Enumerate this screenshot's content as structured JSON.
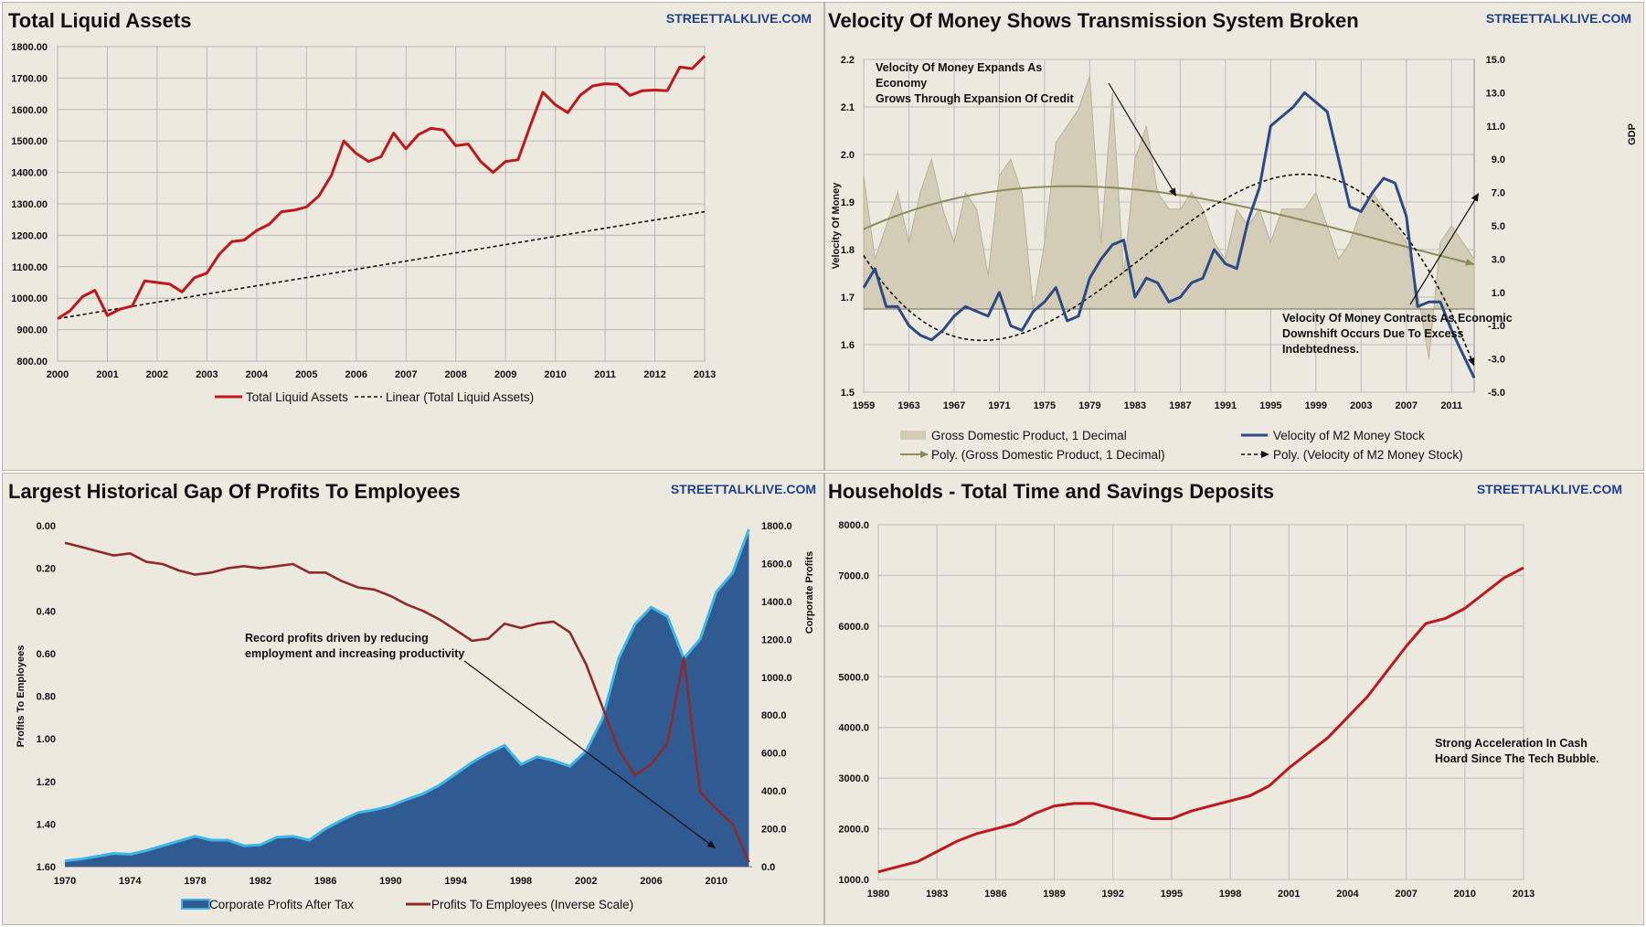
{
  "panels": {
    "p1": {
      "title": "Total Liquid Assets",
      "brand": "STREETTALKLIVE.COM"
    },
    "p2": {
      "title": "Velocity Of Money Shows Transmission System Broken",
      "brand": "STREETTALKLIVE.COM"
    },
    "p3": {
      "title": "Largest Historical Gap Of Profits To Employees",
      "brand": "STREETTALKLIVE.COM"
    },
    "p4": {
      "title": "Households - Total Time and Savings Deposits",
      "brand": "STREETTALKLIVE.COM"
    }
  },
  "chart_data": [
    {
      "id": "p1",
      "type": "line",
      "title": "Total Liquid Assets",
      "ylim": [
        800,
        1800
      ],
      "xlim": [
        2000,
        2013
      ],
      "x_ticks": [
        "2000",
        "2001",
        "2002",
        "2003",
        "2004",
        "2005",
        "2006",
        "2007",
        "2008",
        "2009",
        "2010",
        "2011",
        "2012",
        "2013"
      ],
      "y_ticks": [
        "800.00",
        "900.00",
        "1000.00",
        "1100.00",
        "1200.00",
        "1300.00",
        "1400.00",
        "1500.00",
        "1600.00",
        "1700.00",
        "1800.00"
      ],
      "grid": true,
      "legend_position": "bottom",
      "colors": {
        "series": "#c0171e",
        "trend": "#111111"
      },
      "series": [
        {
          "name": "Total Liquid Assets",
          "x": [
            2000,
            2000.25,
            2000.5,
            2000.75,
            2001,
            2001.25,
            2001.5,
            2001.75,
            2002,
            2002.25,
            2002.5,
            2002.75,
            2003,
            2003.25,
            2003.5,
            2003.75,
            2004,
            2004.25,
            2004.5,
            2004.75,
            2005,
            2005.25,
            2005.5,
            2005.75,
            2006,
            2006.25,
            2006.5,
            2006.75,
            2007,
            2007.25,
            2007.5,
            2007.75,
            2008,
            2008.25,
            2008.5,
            2008.75,
            2009,
            2009.25,
            2009.5,
            2009.75,
            2010,
            2010.25,
            2010.5,
            2010.75,
            2011,
            2011.25,
            2011.5,
            2011.75,
            2012,
            2012.25,
            2012.5,
            2012.75,
            2013
          ],
          "values": [
            935,
            960,
            1005,
            1025,
            945,
            965,
            975,
            1055,
            1050,
            1045,
            1020,
            1065,
            1080,
            1140,
            1180,
            1185,
            1215,
            1235,
            1275,
            1280,
            1290,
            1325,
            1390,
            1500,
            1460,
            1435,
            1450,
            1525,
            1475,
            1520,
            1540,
            1535,
            1485,
            1490,
            1435,
            1400,
            1435,
            1440,
            1550,
            1655,
            1615,
            1590,
            1645,
            1675,
            1682,
            1680,
            1645,
            1660,
            1662,
            1660,
            1735,
            1730,
            1770
          ]
        },
        {
          "name": "Linear (Total Liquid Assets)",
          "x": [
            2000,
            2013
          ],
          "values": [
            935,
            1275
          ]
        }
      ]
    },
    {
      "id": "p2",
      "type": "line",
      "title": "Velocity Of Money Shows Transmission System Broken",
      "ylabel": "Velocity Of Money",
      "y2label": "GDP",
      "ylim": [
        1.5,
        2.2
      ],
      "y2lim": [
        -5,
        15
      ],
      "xlim": [
        1959,
        2013
      ],
      "x_ticks": [
        "1959",
        "1963",
        "1967",
        "1971",
        "1975",
        "1979",
        "1983",
        "1987",
        "1991",
        "1995",
        "1999",
        "2003",
        "2007",
        "2011"
      ],
      "y_ticks": [
        "1.5",
        "1.6",
        "1.7",
        "1.8",
        "1.9",
        "2.0",
        "2.1",
        "2.2"
      ],
      "y2_ticks": [
        "-5.0",
        "-3.0",
        "-1.0",
        "1.0",
        "3.0",
        "5.0",
        "7.0",
        "9.0",
        "11.0",
        "13.0",
        "15.0"
      ],
      "grid": true,
      "legend_position": "bottom",
      "colors": {
        "gdp": "#d3cdb7",
        "velocity": "#2e4a86",
        "gdp_trend": "#8f8a5c",
        "vel_trend": "#111111"
      },
      "legend": [
        "Gross Domestic Product, 1 Decimal",
        "Velocity of M2 Money Stock",
        "Poly. (Gross Domestic Product, 1 Decimal)",
        "Poly. (Velocity of M2 Money Stock)"
      ],
      "annotations": [
        "Velocity Of Money Expands As",
        "Economy",
        "Grows Through Expansion Of Credit",
        "Velocity Of Money Contracts As Economic",
        "Downshift Occurs Due To Excess",
        "Indebtedness."
      ],
      "series": [
        {
          "name": "Velocity of M2 Money Stock",
          "x": [
            1959,
            1960,
            1961,
            1962,
            1963,
            1964,
            1965,
            1966,
            1967,
            1968,
            1969,
            1970,
            1971,
            1972,
            1973,
            1974,
            1975,
            1976,
            1977,
            1978,
            1979,
            1980,
            1981,
            1982,
            1983,
            1984,
            1985,
            1986,
            1987,
            1988,
            1989,
            1990,
            1991,
            1992,
            1993,
            1994,
            1995,
            1996,
            1997,
            1998,
            1999,
            2000,
            2001,
            2002,
            2003,
            2004,
            2005,
            2006,
            2007,
            2008,
            2009,
            2010,
            2011,
            2012,
            2013
          ],
          "values": [
            1.72,
            1.76,
            1.68,
            1.68,
            1.64,
            1.62,
            1.61,
            1.63,
            1.66,
            1.68,
            1.67,
            1.66,
            1.71,
            1.64,
            1.63,
            1.67,
            1.69,
            1.72,
            1.65,
            1.66,
            1.74,
            1.78,
            1.81,
            1.82,
            1.7,
            1.74,
            1.73,
            1.69,
            1.7,
            1.73,
            1.74,
            1.8,
            1.77,
            1.76,
            1.86,
            1.93,
            2.06,
            2.08,
            2.1,
            2.13,
            2.11,
            2.09,
            1.99,
            1.89,
            1.88,
            1.92,
            1.95,
            1.94,
            1.87,
            1.68,
            1.69,
            1.69,
            1.63,
            1.58,
            1.53
          ]
        },
        {
          "name": "Gross Domestic Product, 1 Decimal",
          "x": [
            1959,
            1960,
            1961,
            1962,
            1963,
            1964,
            1965,
            1966,
            1967,
            1968,
            1969,
            1970,
            1971,
            1972,
            1973,
            1974,
            1975,
            1976,
            1977,
            1978,
            1979,
            1980,
            1981,
            1982,
            1983,
            1984,
            1985,
            1986,
            1987,
            1988,
            1989,
            1990,
            1991,
            1992,
            1993,
            1994,
            1995,
            1996,
            1997,
            1998,
            1999,
            2000,
            2001,
            2002,
            2003,
            2004,
            2005,
            2006,
            2007,
            2008,
            2009,
            2010,
            2011,
            2012,
            2013
          ],
          "values": [
            8,
            3,
            5,
            7,
            4,
            7,
            9,
            6,
            4,
            7,
            6,
            2,
            8,
            9,
            7,
            0,
            4,
            10,
            11,
            12,
            14,
            4,
            13,
            2,
            9,
            11,
            7,
            6,
            6,
            7,
            6,
            4,
            3,
            6,
            5,
            6,
            4,
            6,
            6,
            6,
            7,
            5,
            3,
            4,
            6,
            7,
            6,
            5,
            4,
            1,
            -3,
            4,
            5,
            4,
            3
          ]
        }
      ]
    },
    {
      "id": "p3",
      "type": "area",
      "title": "Largest Historical Gap Of Profits To Employees",
      "ylabel": "Profits To Employees",
      "y2label": "Corporate Profits",
      "ylim": [
        0,
        1.6
      ],
      "y_inverted": true,
      "y2lim": [
        0,
        1800
      ],
      "xlim": [
        1970,
        2013
      ],
      "x_ticks": [
        "1970",
        "1974",
        "1978",
        "1982",
        "1986",
        "1990",
        "1994",
        "1998",
        "2002",
        "2006",
        "2010"
      ],
      "y_ticks": [
        "0.00",
        "0.20",
        "0.40",
        "0.60",
        "0.80",
        "1.00",
        "1.20",
        "1.40",
        "1.60"
      ],
      "y2_ticks": [
        "0.0",
        "200.0",
        "400.0",
        "600.0",
        "800.0",
        "1000.0",
        "1200.0",
        "1400.0",
        "1600.0",
        "1800.0"
      ],
      "grid": false,
      "legend_position": "bottom",
      "colors": {
        "profits": "#2f5a92",
        "profits_edge": "#3cb7e8",
        "employees": "#8e2a2a"
      },
      "annotation": [
        "Record profits driven by reducing",
        "employment and increasing productivity"
      ],
      "series": [
        {
          "name": "Corporate Profits After Tax",
          "x": [
            1970,
            1971,
            1972,
            1973,
            1974,
            1975,
            1976,
            1977,
            1978,
            1979,
            1980,
            1981,
            1982,
            1983,
            1984,
            1985,
            1986,
            1987,
            1988,
            1989,
            1990,
            1991,
            1992,
            1993,
            1994,
            1995,
            1996,
            1997,
            1998,
            1999,
            2000,
            2001,
            2002,
            2003,
            2004,
            2005,
            2006,
            2007,
            2008,
            2009,
            2010,
            2011,
            2012
          ],
          "values": [
            30,
            40,
            55,
            70,
            65,
            85,
            110,
            135,
            160,
            140,
            140,
            110,
            115,
            155,
            160,
            140,
            200,
            245,
            285,
            300,
            320,
            355,
            385,
            430,
            490,
            550,
            600,
            640,
            540,
            580,
            560,
            530,
            610,
            780,
            1100,
            1280,
            1370,
            1320,
            1100,
            1200,
            1450,
            1550,
            1780
          ]
        },
        {
          "name": "Profits To Employees (Inverse Scale)",
          "x": [
            1970,
            1971,
            1972,
            1973,
            1974,
            1975,
            1976,
            1977,
            1978,
            1979,
            1980,
            1981,
            1982,
            1983,
            1984,
            1985,
            1986,
            1987,
            1988,
            1989,
            1990,
            1991,
            1992,
            1993,
            1994,
            1995,
            1996,
            1997,
            1998,
            1999,
            2000,
            2001,
            2002,
            2003,
            2004,
            2005,
            2006,
            2007,
            2008,
            2009,
            2010,
            2011,
            2012
          ],
          "values": [
            0.08,
            0.1,
            0.12,
            0.14,
            0.13,
            0.17,
            0.18,
            0.21,
            0.23,
            0.22,
            0.2,
            0.19,
            0.2,
            0.19,
            0.18,
            0.22,
            0.22,
            0.26,
            0.29,
            0.3,
            0.33,
            0.37,
            0.4,
            0.44,
            0.49,
            0.54,
            0.53,
            0.46,
            0.48,
            0.46,
            0.45,
            0.5,
            0.65,
            0.85,
            1.05,
            1.17,
            1.12,
            1.02,
            0.62,
            1.25,
            1.33,
            1.4,
            1.58
          ]
        }
      ]
    },
    {
      "id": "p4",
      "type": "line",
      "title": "Households - Total Time and Savings Deposits",
      "ylim": [
        1000,
        8000
      ],
      "xlim": [
        1980,
        2013
      ],
      "x_ticks": [
        "1980",
        "1983",
        "1986",
        "1989",
        "1992",
        "1995",
        "1998",
        "2001",
        "2004",
        "2007",
        "2010",
        "2013"
      ],
      "y_ticks": [
        "1000.0",
        "2000.0",
        "3000.0",
        "4000.0",
        "5000.0",
        "6000.0",
        "7000.0",
        "8000.0"
      ],
      "grid": true,
      "colors": {
        "series": "#c0171e"
      },
      "annotation": [
        "Strong Acceleration In Cash",
        "Hoard Since The Tech Bubble."
      ],
      "series": [
        {
          "name": "",
          "x": [
            1980,
            1981,
            1982,
            1983,
            1984,
            1985,
            1986,
            1987,
            1988,
            1989,
            1990,
            1991,
            1992,
            1993,
            1994,
            1995,
            1996,
            1997,
            1998,
            1999,
            2000,
            2001,
            2002,
            2003,
            2004,
            2005,
            2006,
            2007,
            2008,
            2009,
            2010,
            2011,
            2012,
            2013
          ],
          "values": [
            1150,
            1250,
            1350,
            1550,
            1750,
            1900,
            2000,
            2100,
            2300,
            2450,
            2500,
            2500,
            2400,
            2300,
            2200,
            2200,
            2350,
            2450,
            2550,
            2650,
            2850,
            3200,
            3500,
            3800,
            4200,
            4600,
            5100,
            5600,
            6050,
            6150,
            6350,
            6650,
            6950,
            7150
          ]
        }
      ]
    }
  ]
}
